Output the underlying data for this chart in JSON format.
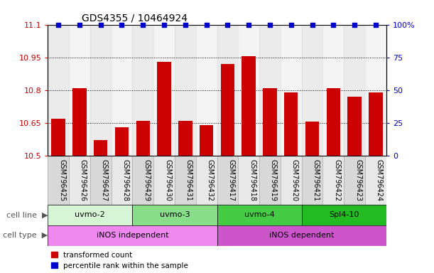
{
  "title": "GDS4355 / 10464924",
  "samples": [
    "GSM796425",
    "GSM796426",
    "GSM796427",
    "GSM796428",
    "GSM796429",
    "GSM796430",
    "GSM796431",
    "GSM796432",
    "GSM796417",
    "GSM796418",
    "GSM796419",
    "GSM796420",
    "GSM796421",
    "GSM796422",
    "GSM796423",
    "GSM796424"
  ],
  "red_values": [
    10.67,
    10.81,
    10.57,
    10.63,
    10.66,
    10.93,
    10.66,
    10.64,
    10.92,
    10.955,
    10.81,
    10.79,
    10.655,
    10.81,
    10.77,
    10.79
  ],
  "ylim": [
    10.5,
    11.1
  ],
  "y2lim": [
    0,
    100
  ],
  "yticks": [
    10.5,
    10.65,
    10.8,
    10.95,
    11.1
  ],
  "y2ticks": [
    0,
    25,
    50,
    75,
    100
  ],
  "ytick_labels": [
    "10.5",
    "10.65",
    "10.8",
    "10.95",
    "11.1"
  ],
  "y2tick_labels": [
    "0",
    "25",
    "50",
    "75",
    "100%"
  ],
  "hlines": [
    10.65,
    10.8,
    10.95
  ],
  "cell_line_groups": [
    {
      "label": "uvmo-2",
      "start": 0,
      "end": 4,
      "color": "#d5f5d5"
    },
    {
      "label": "uvmo-3",
      "start": 4,
      "end": 8,
      "color": "#88dd88"
    },
    {
      "label": "uvmo-4",
      "start": 8,
      "end": 12,
      "color": "#44cc44"
    },
    {
      "label": "Spl4-10",
      "start": 12,
      "end": 16,
      "color": "#22bb22"
    }
  ],
  "cell_type_groups": [
    {
      "label": "iNOS independent",
      "start": 0,
      "end": 8,
      "color": "#ee88ee"
    },
    {
      "label": "iNOS dependent",
      "start": 8,
      "end": 16,
      "color": "#cc55cc"
    }
  ],
  "red_color": "#cc0000",
  "blue_color": "#0000cc",
  "bar_width": 0.65,
  "legend_labels": [
    "transformed count",
    "percentile rank within the sample"
  ],
  "label_fontsize": 8,
  "sample_fontsize": 7
}
